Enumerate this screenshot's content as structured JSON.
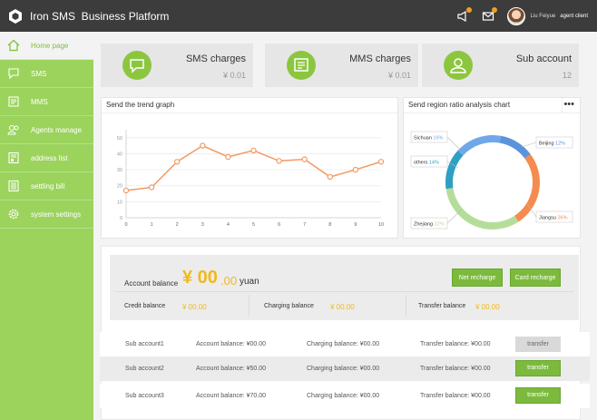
{
  "app": {
    "title": "Iron SMS  Business Platform",
    "user_name": "Liu Feiyue",
    "user_role": "agent client"
  },
  "sidebar": {
    "items": [
      {
        "label": "Home page",
        "icon": "home-icon"
      },
      {
        "label": "SMS",
        "icon": "chat-icon"
      },
      {
        "label": "MMS",
        "icon": "message-icon"
      },
      {
        "label": "Agents manage",
        "icon": "agents-icon"
      },
      {
        "label": "address list",
        "icon": "book-icon"
      },
      {
        "label": "settling bill",
        "icon": "bill-icon"
      },
      {
        "label": "system settings",
        "icon": "gear-icon"
      }
    ]
  },
  "cards": [
    {
      "title": "SMS charges",
      "value": "¥ 0.01",
      "icon": "chat-icon"
    },
    {
      "title": "MMS charges",
      "value": "¥ 0.01",
      "icon": "message-icon"
    },
    {
      "title": "Sub account",
      "value": "12",
      "icon": "users-icon"
    }
  ],
  "trend": {
    "title": "Send the trend graph"
  },
  "region": {
    "title": "Send region ratio analysis chart",
    "more": "•••"
  },
  "chart_data": [
    {
      "type": "line",
      "x": [
        0,
        1,
        2,
        3,
        4,
        5,
        6,
        7,
        8,
        9,
        10
      ],
      "values": [
        17,
        19,
        35,
        45,
        38,
        42,
        35.5,
        36.5,
        25.5,
        30,
        35
      ],
      "ylim": [
        0,
        55
      ],
      "yticks": [
        0,
        10,
        20,
        30,
        40,
        50
      ],
      "xticks": [
        "0",
        "1",
        "2",
        "3",
        "4",
        "5",
        "6",
        "7",
        "8",
        "9",
        "10"
      ],
      "grid": true,
      "color": "#f39a64"
    },
    {
      "type": "pie",
      "slices": [
        {
          "name": "Sichuan",
          "pct": "16%",
          "color": "#6fa8e8"
        },
        {
          "name": "Beijing",
          "pct": "12%",
          "color": "#5b93dc"
        },
        {
          "name": "Jiangsu",
          "pct": "26%",
          "color": "#f58b4f"
        },
        {
          "name": "Zhejiang",
          "pct": "32%",
          "color": "#b5dd9a"
        },
        {
          "name": "others",
          "pct": "14%",
          "color": "#2f9fc4"
        }
      ]
    }
  ],
  "balance": {
    "label": "Account balance",
    "amount_main": "¥ 00",
    "amount_dec": ".00",
    "unit": "yuan",
    "net_btn": "Net recharge",
    "card_btn": "Card recharge",
    "credit_label": "Credit balance",
    "credit_value": "¥ 00.00",
    "charging_label": "Charging balance",
    "charging_value": "¥ 00.00",
    "transfer_label": "Transfer balance",
    "transfer_value": "¥ 00.00"
  },
  "subaccounts": [
    {
      "name": "Sub account1",
      "account": "Account balance: ¥00.00",
      "charging": "Charging balance: ¥00.00",
      "transfer": "Transfer balance: ¥00.00",
      "btn": "transfer"
    },
    {
      "name": "Sub account2",
      "account": "Account balance: ¥50.00",
      "charging": "Charging balance: ¥00.00",
      "transfer": "Transfer balance: ¥00.00",
      "btn": "transfer"
    },
    {
      "name": "Sub account3",
      "account": "Account balance: ¥70.00",
      "charging": "Charging balance: ¥00.00",
      "transfer": "Transfer balance: ¥00.00",
      "btn": "transfer"
    }
  ]
}
